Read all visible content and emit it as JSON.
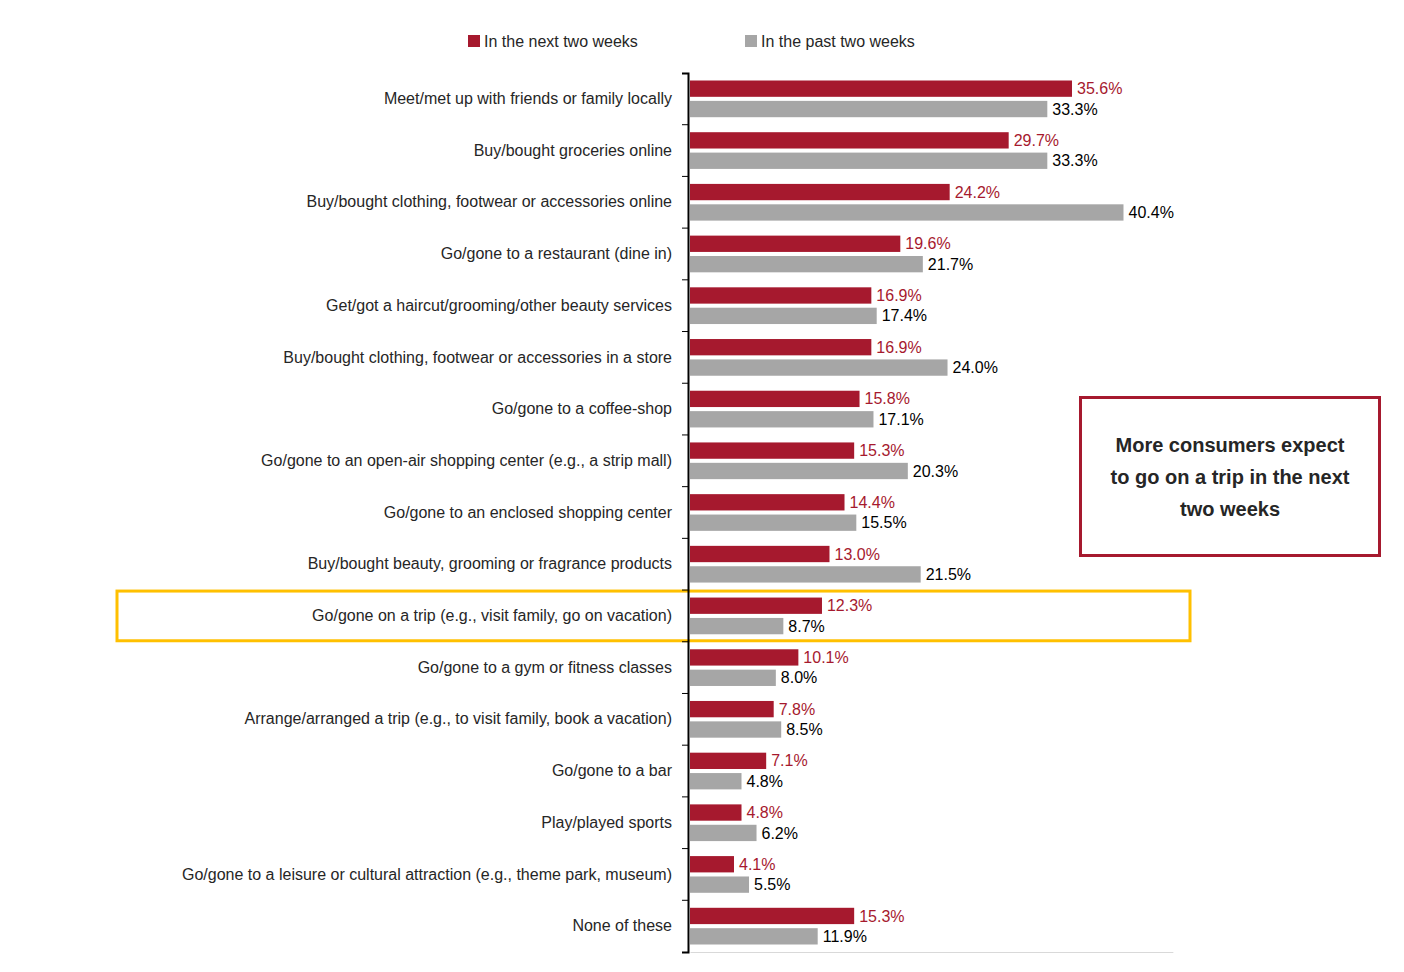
{
  "chart_data": {
    "type": "bar",
    "orientation": "horizontal",
    "categories": [
      "Meet/met up with friends or family locally",
      "Buy/bought groceries online",
      "Buy/bought clothing, footwear or accessories online",
      "Go/gone to a restaurant (dine in)",
      "Get/got a haircut/grooming/other beauty services",
      "Buy/bought clothing, footwear or accessories in a store",
      "Go/gone to a coffee-shop",
      "Go/gone to an open-air shopping center (e.g., a strip mall)",
      "Go/gone to an enclosed shopping center",
      "Buy/bought beauty, grooming or fragrance products",
      "Go/gone on a trip (e.g., visit family, go on vacation)",
      "Go/gone to a gym or fitness classes",
      "Arrange/arranged a trip (e.g., to visit family, book a vacation)",
      "Go/gone to a bar",
      "Play/played sports",
      "Go/gone to a leisure or cultural attraction (e.g., theme park, museum)",
      "None of these"
    ],
    "series": [
      {
        "name": "In the next two weeks",
        "color": "#A6192E",
        "values": [
          35.6,
          29.7,
          24.2,
          19.6,
          16.9,
          16.9,
          15.8,
          15.3,
          14.4,
          13.0,
          12.3,
          10.1,
          7.8,
          7.1,
          4.8,
          4.1,
          15.3
        ],
        "value_labels": [
          "35.6%",
          "29.7%",
          "24.2%",
          "19.6%",
          "16.9%",
          "16.9%",
          "15.8%",
          "15.3%",
          "14.4%",
          "13.0%",
          "12.3%",
          "10.1%",
          "7.8%",
          "7.1%",
          "4.8%",
          "4.1%",
          "15.3%"
        ]
      },
      {
        "name": "In the past two weeks",
        "color": "#A6A6A6",
        "values": [
          33.3,
          33.3,
          40.4,
          21.7,
          17.4,
          24.0,
          17.1,
          20.3,
          15.5,
          21.5,
          8.7,
          8.0,
          8.5,
          4.8,
          6.2,
          5.5,
          11.9
        ],
        "value_labels": [
          "33.3%",
          "33.3%",
          "40.4%",
          "21.7%",
          "17.4%",
          "24.0%",
          "17.1%",
          "20.3%",
          "15.5%",
          "21.5%",
          "8.7%",
          "8.0%",
          "8.5%",
          "4.8%",
          "6.2%",
          "5.5%",
          "11.9%"
        ]
      }
    ],
    "xlim": [
      0,
      45
    ],
    "tick_labels": "y",
    "data_labels": true,
    "legend": "top",
    "grid": false,
    "annotations": [
      {
        "text": "More consumers expect to go on a trip in the next two weeks",
        "target": "Go/gone on a trip (e.g., visit family, go on vacation)"
      }
    ]
  }
}
